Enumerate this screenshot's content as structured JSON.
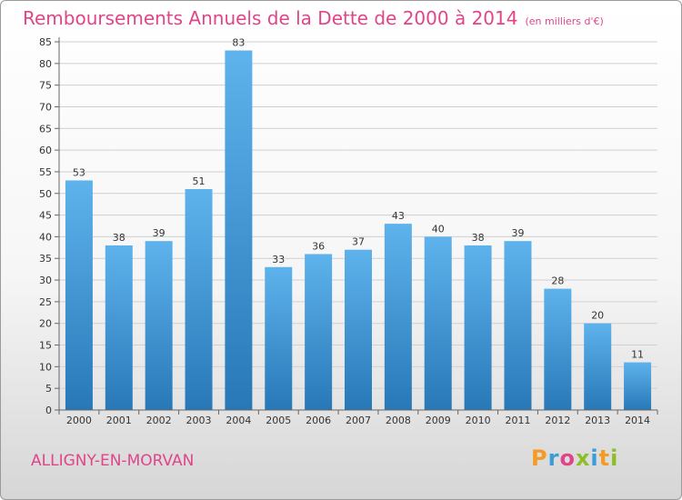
{
  "header": {
    "title": "Remboursements Annuels de la Dette de 2000 à 2014",
    "subtitle": "(en milliers d'€)"
  },
  "footer": {
    "city": "ALLIGNY-EN-MORVAN",
    "logo": [
      "P",
      "r",
      "o",
      "x",
      "i",
      "t",
      "i"
    ]
  },
  "colors": {
    "title": "#e0458a",
    "bar_top": "#5eb3ec",
    "bar_bottom": "#2878b8",
    "logo_letters": [
      "#f39b22",
      "#3b9cd9",
      "#e0458a",
      "#8cbf26",
      "#3b9cd9",
      "#f39b22",
      "#8cbf26"
    ]
  },
  "chart_data": {
    "type": "bar",
    "categories": [
      "2000",
      "2001",
      "2002",
      "2003",
      "2004",
      "2005",
      "2006",
      "2007",
      "2008",
      "2009",
      "2010",
      "2011",
      "2012",
      "2013",
      "2014"
    ],
    "values": [
      53,
      38,
      39,
      51,
      83,
      33,
      36,
      37,
      43,
      40,
      38,
      39,
      28,
      20,
      11
    ],
    "yticks": [
      0,
      5,
      10,
      15,
      20,
      25,
      30,
      35,
      40,
      45,
      50,
      55,
      60,
      65,
      70,
      75,
      80,
      85
    ],
    "ylim": [
      0,
      85
    ],
    "grid": true,
    "title": "Remboursements Annuels de la Dette de 2000 à 2014",
    "xlabel": "",
    "ylabel": ""
  }
}
